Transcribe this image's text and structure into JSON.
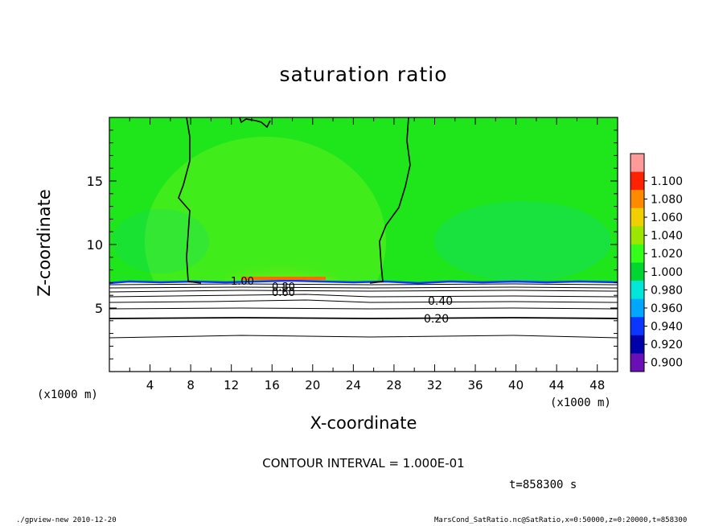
{
  "chart_data": {
    "type": "heatmap",
    "title": "saturation ratio",
    "xlabel": "X-coordinate",
    "ylabel": "Z-coordinate",
    "x_unit": "(x1000 m)",
    "y_unit": "(x1000 m)",
    "xlim": [
      0,
      50
    ],
    "ylim": [
      0,
      20
    ],
    "x_ticks": [
      "4",
      "8",
      "12",
      "16",
      "20",
      "24",
      "28",
      "32",
      "36",
      "40",
      "44",
      "48"
    ],
    "y_ticks": [
      "5",
      "10",
      "15"
    ],
    "colorbar": {
      "levels": [
        "0.900",
        "0.920",
        "0.940",
        "0.960",
        "0.980",
        "1.000",
        "1.020",
        "1.040",
        "1.060",
        "1.080",
        "1.100"
      ],
      "colors": [
        "#6a0fb5",
        "#0000a8",
        "#0a36ff",
        "#00a6ff",
        "#00e6d9",
        "#00d630",
        "#33ff1a",
        "#9ce600",
        "#f0d000",
        "#ff8a00",
        "#ff2200",
        "#ff9a9a"
      ]
    },
    "background_value": 1.0,
    "contour_interval": "1.000E-01",
    "contour_labels": [
      "1.00",
      "0.40",
      "0.20",
      "0.80",
      "0.60"
    ],
    "notes": "Cloud layer above about z=7 km near saturation (~1.0); supersaturation maximum near x=14-21 km just above z=7 km; subsaturated region below with contours decreasing downward"
  },
  "annotations": {
    "contour_interval_text": "CONTOUR INTERVAL = 1.000E-01",
    "time_text": "t=858300 s"
  },
  "footer": {
    "left": "./gpview-new   2010-12-20",
    "right": "MarsCond_SatRatio.nc@SatRatio,x=0:50000,z=0:20000,t=858300"
  }
}
